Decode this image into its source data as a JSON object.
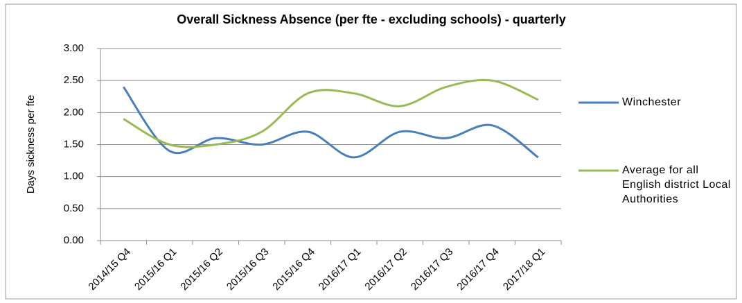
{
  "chart_data": {
    "type": "line",
    "title": "Overall Sickness Absence (per fte - excluding schools) - quarterly",
    "y_label": "Days sickness per fte",
    "categories": [
      "2014/15 Q4",
      "2015/16 Q1",
      "2015/16 Q2",
      "2015/16 Q3",
      "2015/16 Q4",
      "2016/17 Q1",
      "2016/17 Q2",
      "2016/17 Q3",
      "2016/17 Q4",
      "2017/18 Q1"
    ],
    "series": [
      {
        "name": "Winchester",
        "color": "#4a7ebb",
        "values": [
          2.4,
          1.4,
          1.6,
          1.5,
          1.7,
          1.3,
          1.7,
          1.6,
          1.8,
          1.3
        ]
      },
      {
        "name": "Average for all English district Local Authorities",
        "color": "#98b954",
        "values": [
          1.9,
          1.5,
          1.5,
          1.7,
          2.3,
          2.3,
          2.1,
          2.4,
          2.5,
          2.2
        ]
      }
    ],
    "ylim": [
      0,
      3
    ],
    "yticks": [
      {
        "value": 0,
        "label": "0.00"
      },
      {
        "value": 0.5,
        "label": "0.50"
      },
      {
        "value": 1,
        "label": "1.00"
      },
      {
        "value": 1.5,
        "label": "1.50"
      },
      {
        "value": 2,
        "label": "2.00"
      },
      {
        "value": 2.5,
        "label": "2.50"
      },
      {
        "value": 3,
        "label": "3.00"
      }
    ],
    "grid": true,
    "smooth": true,
    "legend": "right"
  }
}
